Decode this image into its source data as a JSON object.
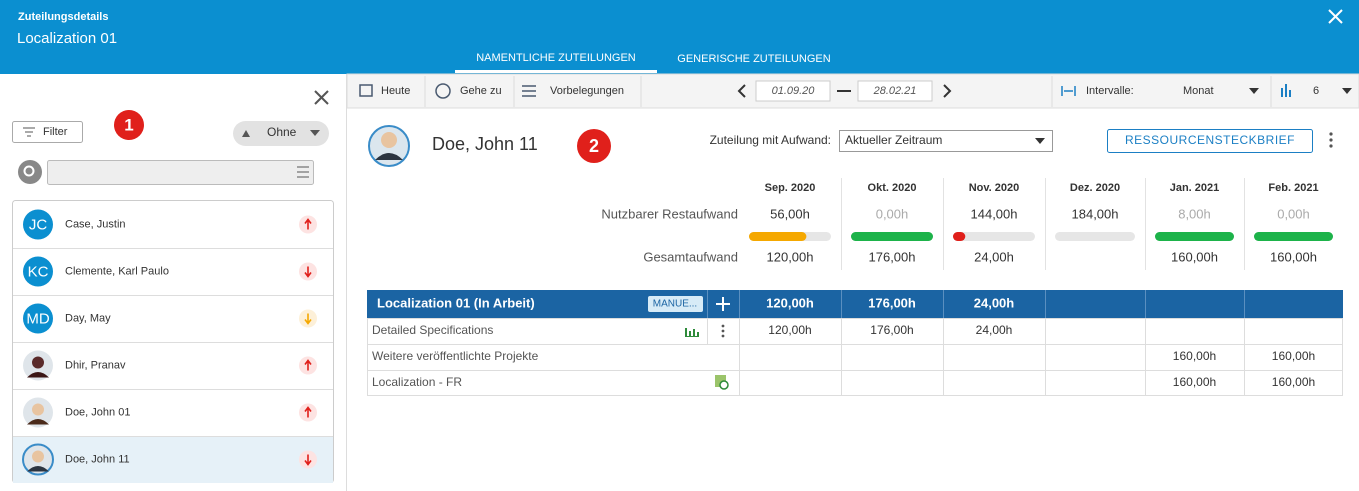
{
  "header": {
    "title": "Zuteilungsdetails",
    "subtitle": "Localization 01",
    "tabs": [
      "NAMENTLICHE ZUTEILUNGEN",
      "GENERISCHE ZUTEILUNGEN"
    ]
  },
  "sidebar": {
    "filter": "Filter",
    "marker": "1",
    "grouping": "Ohne",
    "people": [
      {
        "initials": "JC",
        "name": "Case, Justin"
      },
      {
        "initials": "KC",
        "name": "Clemente, Karl Paulo"
      },
      {
        "initials": "MD",
        "name": "Day, May"
      },
      {
        "name": "Dhir, Pranav"
      },
      {
        "name": "Doe, John 01"
      },
      {
        "name": "Doe, John 11"
      }
    ]
  },
  "toolbar": {
    "today": "Heute",
    "goto": "Gehe zu",
    "presets": "Vorbelegungen",
    "date_from": "01.09.20",
    "date_to": "28.02.21",
    "interval_label": "Intervalle:",
    "interval": "Monat",
    "count": "6"
  },
  "resource": {
    "name": "Doe, John 11",
    "marker": "2",
    "effort_label": "Zuteilung mit Aufwand:",
    "effort_option": "Aktueller Zeitraum",
    "button": "RESSOURCENSTECKBRIEF"
  },
  "summary": {
    "months": [
      "Sep. 2020",
      "Okt. 2020",
      "Nov. 2020",
      "Dez. 2020",
      "Jan. 2021",
      "Feb. 2021"
    ],
    "remaining_label": "Nutzbarer Restaufwand",
    "remaining": [
      "56,00h",
      "0,00h",
      "144,00h",
      "184,00h",
      "8,00h",
      "0,00h"
    ],
    "usage_percent": [
      70,
      100,
      15,
      0,
      100,
      100
    ],
    "usage_colors": [
      "#f5a800",
      "#1db34a",
      "#e0201b",
      null,
      "#1db34a",
      "#1db34a"
    ],
    "total_label": "Gesamtaufwand",
    "total": [
      "120,00h",
      "176,00h",
      "24,00h",
      null,
      "160,00h",
      "160,00h"
    ]
  },
  "table": {
    "project": "Localization 01 (In Arbeit)",
    "mode": "MANUE...",
    "totals": [
      "120,00h",
      "176,00h",
      "24,00h",
      null,
      null,
      null
    ],
    "rows": [
      {
        "label": "Detailed Specifications",
        "values": [
          "120,00h",
          "176,00h",
          "24,00h",
          null,
          null,
          null
        ]
      },
      {
        "label": "Weitere veröffentlichte Projekte",
        "values": [
          null,
          null,
          null,
          null,
          "160,00h",
          "160,00h"
        ]
      },
      {
        "label": "Localization - FR",
        "values": [
          null,
          null,
          null,
          null,
          "160,00h",
          "160,00h"
        ]
      }
    ]
  }
}
